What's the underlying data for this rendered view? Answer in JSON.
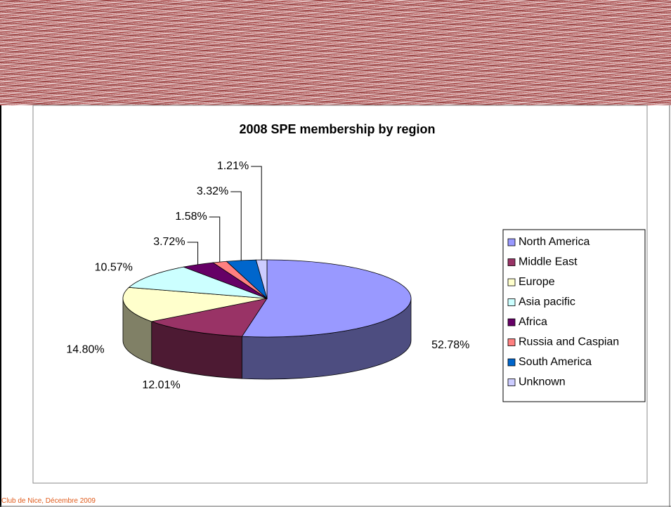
{
  "footer": "Club de Nice, Décembre 2009",
  "chart_data": {
    "type": "pie",
    "title": "2008 SPE membership by region",
    "categories": [
      "North America",
      "Middle East",
      "Europe",
      "Asia pacific",
      "Africa",
      "Russia and Caspian",
      "South America",
      "Unknown"
    ],
    "values": [
      52.78,
      12.01,
      14.8,
      10.57,
      3.72,
      1.58,
      3.32,
      1.21
    ],
    "value_labels": [
      "52.78%",
      "12.01%",
      "14.80%",
      "10.57%",
      "3.72%",
      "1.58%",
      "3.32%",
      "1.21%"
    ],
    "colors": [
      "#9999ff",
      "#993366",
      "#ffffcc",
      "#ccffff",
      "#660066",
      "#ff8080",
      "#0066cc",
      "#ccccff"
    ],
    "legend": "right"
  }
}
